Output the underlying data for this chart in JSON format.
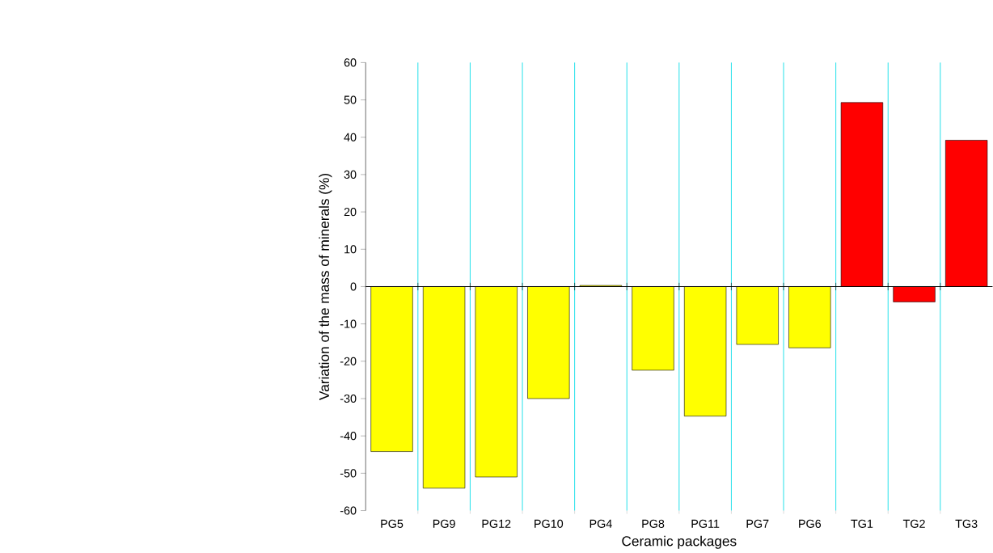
{
  "chart_data": {
    "type": "bar",
    "xlabel": "Ceramic packages",
    "ylabel": "Variation of the mass of minerals (%)",
    "categories": [
      "PG5",
      "PG9",
      "PG12",
      "PG10",
      "PG4",
      "PG8",
      "PG11",
      "PG7",
      "PG6",
      "TG1",
      "TG2",
      "TG3"
    ],
    "values": [
      -44.2,
      -54,
      -51,
      -30,
      0.3,
      -22.4,
      -34.7,
      -15.5,
      -16.4,
      49.3,
      -4.1,
      39.2
    ],
    "colors": [
      "#ffff00",
      "#ffff00",
      "#ffff00",
      "#ffff00",
      "#ffff00",
      "#ffff00",
      "#ffff00",
      "#ffff00",
      "#ffff00",
      "#ff0000",
      "#ff0000",
      "#ff0000"
    ],
    "ylim": [
      -60,
      60
    ],
    "yticks": [
      -60,
      -50,
      -40,
      -30,
      -20,
      -10,
      0,
      10,
      20,
      30,
      40,
      50,
      60
    ],
    "grid": "x"
  }
}
